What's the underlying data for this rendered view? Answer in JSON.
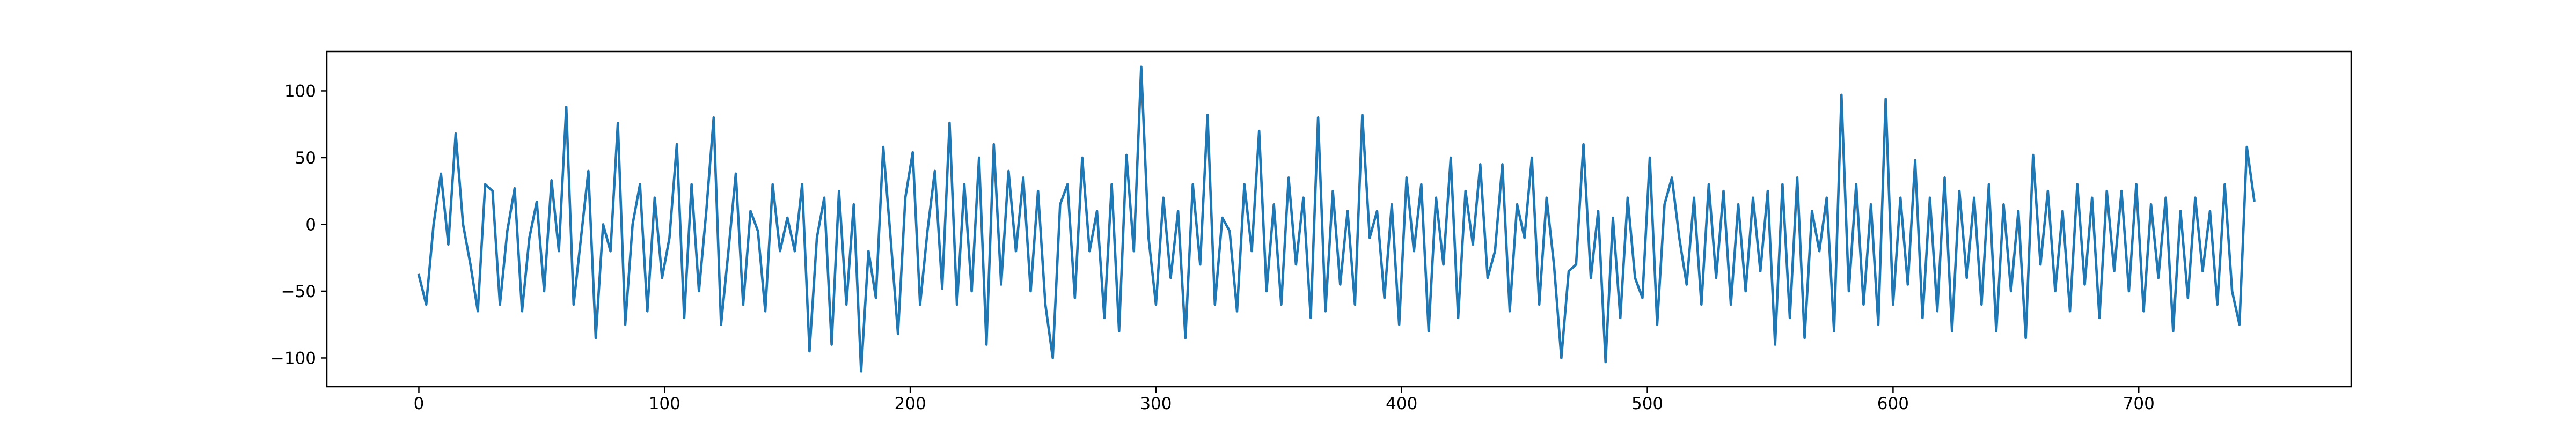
{
  "chart_data": {
    "type": "line",
    "color": "#1f77b4",
    "xlim": [
      -37.45,
      786.45
    ],
    "ylim": [
      -121.5,
      129.5
    ],
    "xticks": [
      0,
      100,
      200,
      300,
      400,
      500,
      600,
      700
    ],
    "yticks": [
      {
        "value": -100,
        "label": "−100"
      },
      {
        "value": -50,
        "label": "−50"
      },
      0,
      50,
      100
    ],
    "x": [
      0,
      3,
      6,
      9,
      12,
      15,
      18,
      21,
      24,
      27,
      30,
      33,
      36,
      39,
      42,
      45,
      48,
      51,
      54,
      57,
      60,
      63,
      66,
      69,
      72,
      75,
      78,
      81,
      84,
      87,
      90,
      93,
      96,
      99,
      102,
      105,
      108,
      111,
      114,
      117,
      120,
      123,
      126,
      129,
      132,
      135,
      138,
      141,
      144,
      147,
      150,
      153,
      156,
      159,
      162,
      165,
      168,
      171,
      174,
      177,
      180,
      183,
      186,
      189,
      192,
      195,
      198,
      201,
      204,
      207,
      210,
      213,
      216,
      219,
      222,
      225,
      228,
      231,
      234,
      237,
      240,
      243,
      246,
      249,
      252,
      255,
      258,
      261,
      264,
      267,
      270,
      273,
      276,
      279,
      282,
      285,
      288,
      291,
      294,
      297,
      300,
      303,
      306,
      309,
      312,
      315,
      318,
      321,
      324,
      327,
      330,
      333,
      336,
      339,
      342,
      345,
      348,
      351,
      354,
      357,
      360,
      363,
      366,
      369,
      372,
      375,
      378,
      381,
      384,
      387,
      390,
      393,
      396,
      399,
      402,
      405,
      408,
      411,
      414,
      417,
      420,
      423,
      426,
      429,
      432,
      435,
      438,
      441,
      444,
      447,
      450,
      453,
      456,
      459,
      462,
      465,
      468,
      471,
      474,
      477,
      480,
      483,
      486,
      489,
      492,
      495,
      498,
      501,
      504,
      507,
      510,
      513,
      516,
      519,
      522,
      525,
      528,
      531,
      534,
      537,
      540,
      543,
      546,
      549,
      552,
      555,
      558,
      561,
      564,
      567,
      570,
      573,
      576,
      579,
      582,
      585,
      588,
      591,
      594,
      597,
      600,
      603,
      606,
      609,
      612,
      615,
      618,
      621,
      624,
      627,
      630,
      633,
      636,
      639,
      642,
      645,
      648,
      651,
      654,
      657,
      660,
      663,
      666,
      669,
      672,
      675,
      678,
      681,
      684,
      687,
      690,
      693,
      696,
      699,
      702,
      705,
      708,
      711,
      714,
      717,
      720,
      723,
      726,
      729,
      732,
      735,
      738,
      741,
      744,
      747
    ],
    "values": [
      -38,
      -60,
      0,
      38,
      -15,
      68,
      0,
      -30,
      -65,
      30,
      25,
      -60,
      -5,
      27,
      -65,
      -10,
      17,
      -50,
      33,
      -20,
      88,
      -60,
      -10,
      40,
      -85,
      0,
      -20,
      76,
      -75,
      0,
      30,
      -65,
      20,
      -40,
      -10,
      60,
      -70,
      30,
      -50,
      10,
      80,
      -75,
      -20,
      38,
      -60,
      10,
      -5,
      -65,
      30,
      -20,
      5,
      -20,
      30,
      -95,
      -10,
      20,
      -90,
      25,
      -60,
      15,
      -110,
      -20,
      -55,
      58,
      -10,
      -82,
      20,
      54,
      -60,
      -5,
      40,
      -48,
      76,
      -60,
      30,
      -50,
      50,
      -90,
      60,
      -45,
      40,
      -20,
      35,
      -50,
      25,
      -60,
      -100,
      15,
      30,
      -55,
      50,
      -20,
      10,
      -70,
      30,
      -80,
      52,
      -20,
      118,
      -10,
      -60,
      20,
      -40,
      10,
      -85,
      30,
      -30,
      82,
      -60,
      5,
      -5,
      -65,
      30,
      -20,
      70,
      -50,
      15,
      -60,
      35,
      -30,
      20,
      -70,
      80,
      -65,
      25,
      -45,
      10,
      -60,
      82,
      -10,
      10,
      -55,
      15,
      -75,
      35,
      -20,
      30,
      -80,
      20,
      -30,
      50,
      -70,
      25,
      -15,
      45,
      -40,
      -20,
      45,
      -65,
      15,
      -10,
      50,
      -60,
      20,
      -30,
      -100,
      -35,
      -30,
      60,
      -40,
      10,
      -103,
      5,
      -70,
      20,
      -40,
      -55,
      50,
      -75,
      15,
      35,
      -10,
      -45,
      20,
      -60,
      30,
      -40,
      25,
      -60,
      15,
      -50,
      20,
      -35,
      25,
      -90,
      30,
      -70,
      35,
      -85,
      10,
      -20,
      20,
      -80,
      97,
      -50,
      30,
      -60,
      15,
      -75,
      94,
      -60,
      20,
      -45,
      48,
      -70,
      20,
      -65,
      35,
      -80,
      25,
      -40,
      20,
      -60,
      30,
      -80,
      15,
      -50,
      10,
      -85,
      52,
      -30,
      25,
      -50,
      10,
      -65,
      30,
      -45,
      20,
      -70,
      25,
      -35,
      25,
      -50,
      30,
      -65,
      15,
      -40,
      20,
      -80,
      10,
      -55,
      20,
      -35,
      10,
      -60,
      30,
      -50,
      -75,
      58,
      18
    ]
  }
}
